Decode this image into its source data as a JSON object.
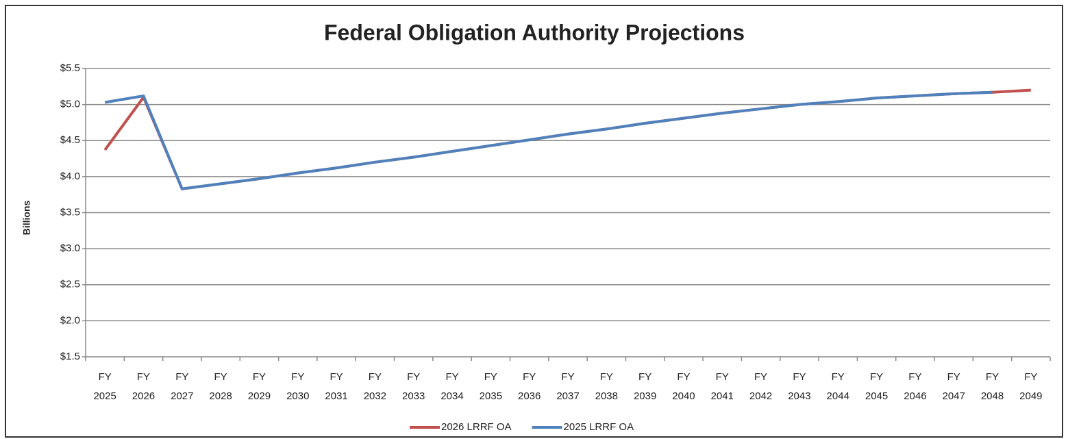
{
  "chart_data": {
    "type": "line",
    "title": "Federal Obligation Authority Projections",
    "y_label": "Billions",
    "categories": [
      "FY 2025",
      "FY 2026",
      "FY 2027",
      "FY 2028",
      "FY 2029",
      "FY 2030",
      "FY 2031",
      "FY 2032",
      "FY 2033",
      "FY 2034",
      "FY 2035",
      "FY 2036",
      "FY 2037",
      "FY 2038",
      "FY 2039",
      "FY 2040",
      "FY 2041",
      "FY 2042",
      "FY 2043",
      "FY 2044",
      "FY 2045",
      "FY 2046",
      "FY 2047",
      "FY 2048",
      "FY 2049"
    ],
    "series": [
      {
        "name": "2026 LRRF OA",
        "color": "#c0504d",
        "values": [
          4.37,
          5.1,
          3.83,
          3.9,
          3.97,
          4.05,
          4.12,
          4.2,
          4.27,
          4.35,
          4.43,
          4.51,
          4.59,
          4.66,
          4.74,
          4.81,
          4.88,
          4.94,
          5.0,
          5.04,
          5.09,
          5.12,
          5.15,
          5.17,
          5.2
        ]
      },
      {
        "name": "2025 LRRF OA",
        "color": "#4f81bd",
        "values": [
          5.03,
          5.12,
          3.83,
          3.9,
          3.97,
          4.05,
          4.12,
          4.2,
          4.27,
          4.35,
          4.43,
          4.51,
          4.59,
          4.66,
          4.74,
          4.81,
          4.88,
          4.94,
          5.0,
          5.04,
          5.09,
          5.12,
          5.15,
          5.17,
          null
        ]
      }
    ],
    "ylim": [
      1.5,
      5.5
    ],
    "yticks": [
      {
        "value": 1.5,
        "label": "$1.5"
      },
      {
        "value": 2.0,
        "label": "$2.0"
      },
      {
        "value": 2.5,
        "label": "$2.5"
      },
      {
        "value": 3.0,
        "label": "$3.0"
      },
      {
        "value": 3.5,
        "label": "$3.5"
      },
      {
        "value": 4.0,
        "label": "$4.0"
      },
      {
        "value": 4.5,
        "label": "$4.5"
      },
      {
        "value": 5.0,
        "label": "$5.0"
      },
      {
        "value": 5.5,
        "label": "$5.5"
      }
    ],
    "grid": true,
    "legend": "bottom"
  }
}
